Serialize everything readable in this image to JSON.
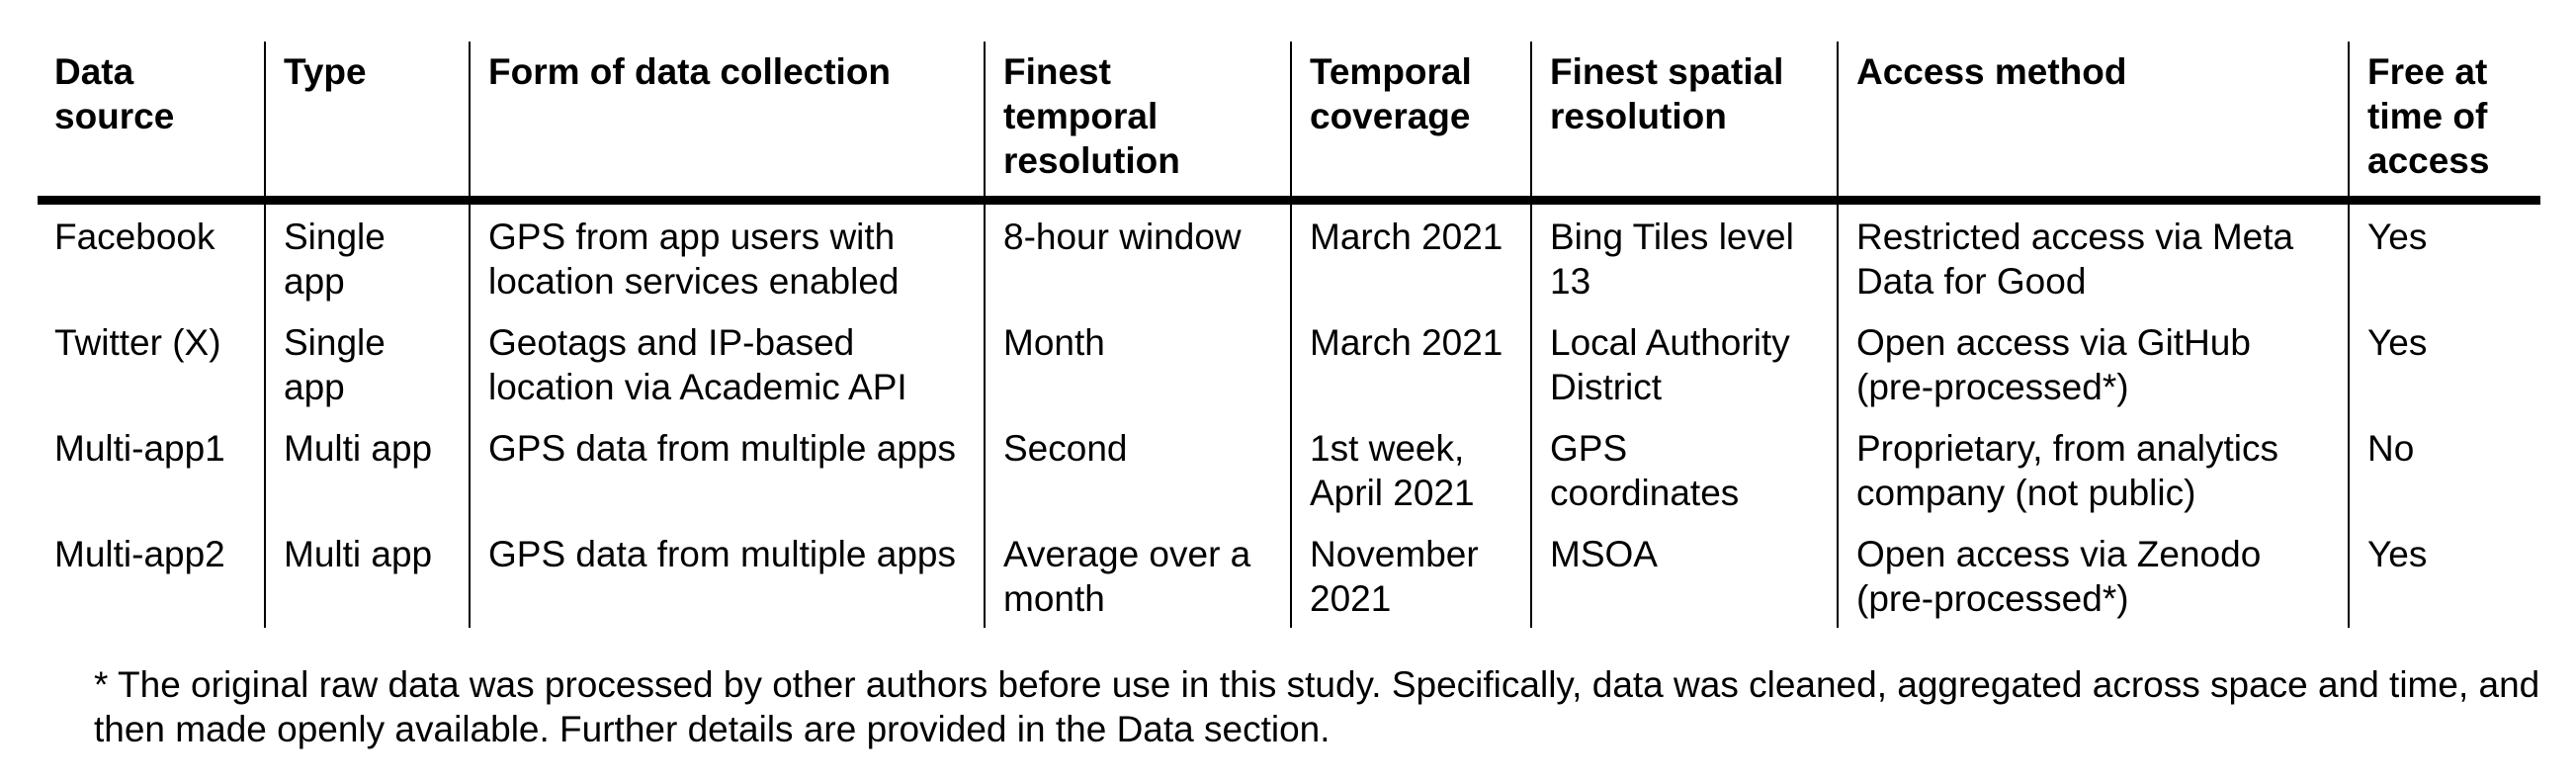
{
  "table": {
    "headers": [
      "Data source",
      "Type",
      "Form of data collection",
      "Finest temporal resolution",
      "Temporal coverage",
      "Finest spatial resolution",
      "Access method",
      "Free at time of access"
    ],
    "rows": [
      [
        "Facebook",
        "Single app",
        "GPS from app users with location services enabled",
        "8-hour window",
        "March 2021",
        "Bing Tiles level 13",
        "Restricted access via Meta Data for Good",
        "Yes"
      ],
      [
        "Twitter (X)",
        "Single app",
        "Geotags and IP-based location via Academic API",
        "Month",
        "March 2021",
        "Local Authority District",
        "Open access via GitHub (pre-processed*)",
        "Yes"
      ],
      [
        "Multi-app1",
        "Multi app",
        "GPS data from multiple apps",
        "Second",
        "1st week, April 2021",
        "GPS coordinates",
        "Proprietary, from analytics company (not public)",
        "No"
      ],
      [
        "Multi-app2",
        "Multi app",
        "GPS data from multiple apps",
        "Average over a month",
        "November 2021",
        "MSOA",
        "Open access via Zenodo (pre-processed*)",
        "Yes"
      ]
    ]
  },
  "footnote": "* The original raw data was processed by other authors before use in this study. Specifically, data was cleaned, aggregated across space and time, and then made openly available. Further details are provided in the Data section."
}
